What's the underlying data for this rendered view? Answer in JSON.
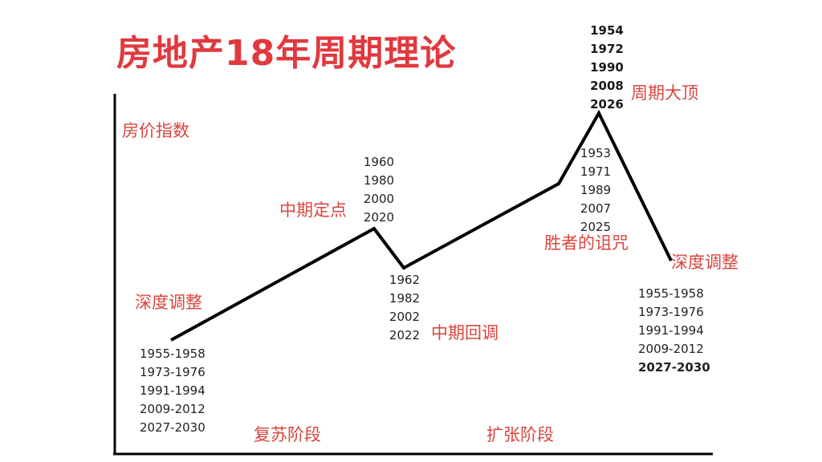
{
  "title": "房地产18年周期理论",
  "y_axis_label": "房价指数",
  "phases": {
    "recovery": "复苏阶段",
    "expansion": "扩张阶段"
  },
  "points": {
    "start": {
      "label": "深度调整",
      "years": [
        "1955-1958",
        "1973-1976",
        "1991-1994",
        "2009-2012",
        "2027-2030"
      ]
    },
    "mid_peak": {
      "label": "中期定点",
      "years": [
        "1960",
        "1980",
        "2000",
        "2020"
      ]
    },
    "mid_dip": {
      "label": "中期回调",
      "years": [
        "1962",
        "1982",
        "2002",
        "2022"
      ]
    },
    "curse": {
      "label": "胜者的诅咒",
      "years": [
        "1953",
        "1971",
        "1989",
        "2007",
        "2025"
      ]
    },
    "top": {
      "label": "周期大顶",
      "years": [
        "1954",
        "1972",
        "1990",
        "2008",
        "2026"
      ]
    },
    "end": {
      "label": "深度调整",
      "years": [
        "1955-1958",
        "1973-1976",
        "1991-1994",
        "2009-2012",
        "2027-2030"
      ]
    }
  },
  "colors": {
    "title": "#e0393e",
    "label": "#d9453f",
    "line": "#000000",
    "text": "#222222"
  }
}
